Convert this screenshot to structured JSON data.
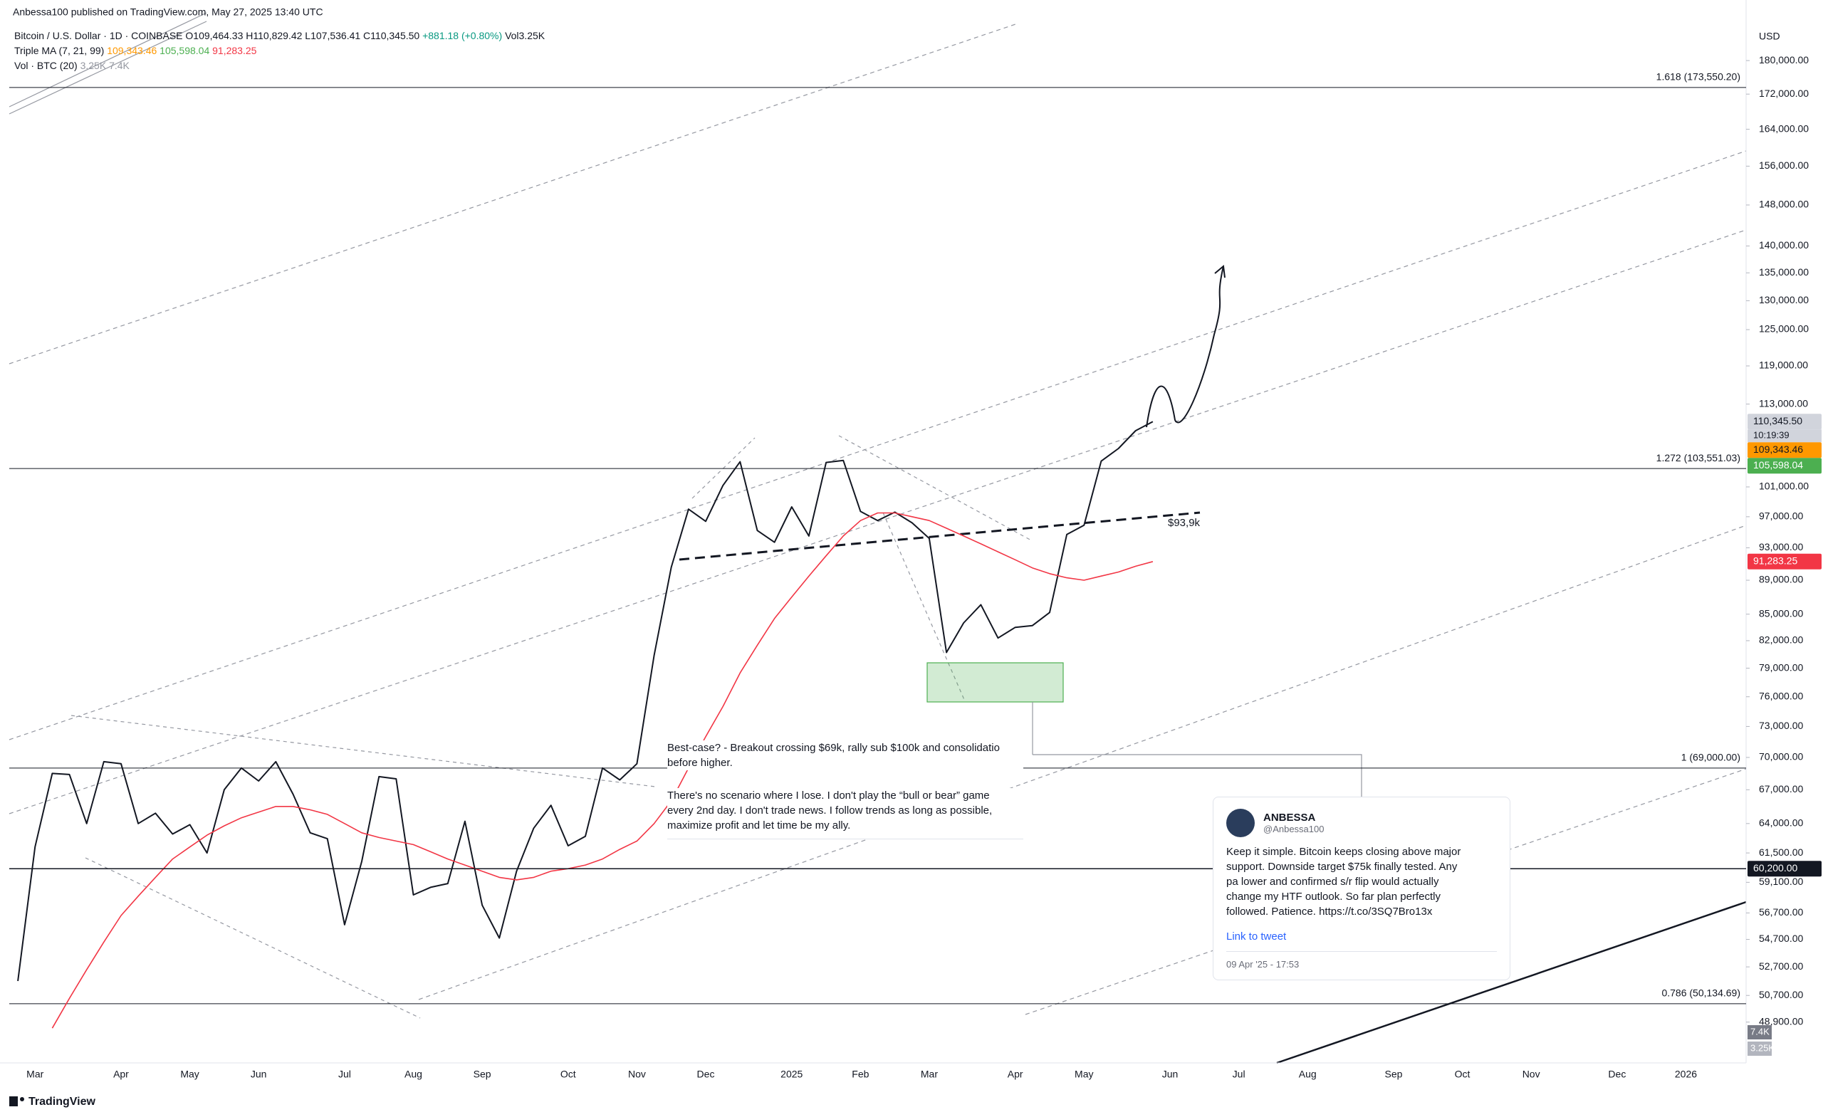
{
  "header": {
    "published": "Anbessa100 published on TradingView.com, May 27, 2025 13:40 UTC"
  },
  "legend": {
    "symbol": "Bitcoin / U.S. Dollar · 1D · COINBASE",
    "open": "O109,464.33",
    "high": "H110,829.42",
    "low": "L107,536.41",
    "close": "C110,345.50",
    "change": "+881.18 (+0.80%)",
    "volume": "Vol3.25K",
    "ma_name": "Triple MA (7, 21, 99)",
    "ma_values": [
      "109,343.46",
      "105,598.04",
      "91,283.25"
    ],
    "vol_name": "Vol · BTC (20)",
    "vol_values": [
      "3.25K",
      "7.4K"
    ]
  },
  "chart_data": {
    "type": "line",
    "currency": "USD",
    "log_scale": true,
    "grid": false,
    "ylim": [
      46270,
      195400
    ],
    "yticks": [
      {
        "value": 180000,
        "label": "180,000.00"
      },
      {
        "value": 172000,
        "label": "172,000.00"
      },
      {
        "value": 164000,
        "label": "164,000.00"
      },
      {
        "value": 156000,
        "label": "156,000.00"
      },
      {
        "value": 148000,
        "label": "148,000.00"
      },
      {
        "value": 140000,
        "label": "140,000.00"
      },
      {
        "value": 135000,
        "label": "135,000.00"
      },
      {
        "value": 130000,
        "label": "130,000.00"
      },
      {
        "value": 125000,
        "label": "125,000.00"
      },
      {
        "value": 119000,
        "label": "119,000.00"
      },
      {
        "value": 113000,
        "label": "113,000.00"
      },
      {
        "value": 101000,
        "label": "101,000.00"
      },
      {
        "value": 97000,
        "label": "97,000.00"
      },
      {
        "value": 93000,
        "label": "93,000.00"
      },
      {
        "value": 89000,
        "label": "89,000.00"
      },
      {
        "value": 85000,
        "label": "85,000.00"
      },
      {
        "value": 82000,
        "label": "82,000.00"
      },
      {
        "value": 79000,
        "label": "79,000.00"
      },
      {
        "value": 76000,
        "label": "76,000.00"
      },
      {
        "value": 73000,
        "label": "73,000.00"
      },
      {
        "value": 70000,
        "label": "70,000.00"
      },
      {
        "value": 67000,
        "label": "67,000.00"
      },
      {
        "value": 64000,
        "label": "64,000.00"
      },
      {
        "value": 61500,
        "label": "61,500.00"
      },
      {
        "value": 59100,
        "label": "59,100.00"
      },
      {
        "value": 56700,
        "label": "56,700.00"
      },
      {
        "value": 54700,
        "label": "54,700.00"
      },
      {
        "value": 52700,
        "label": "52,700.00"
      },
      {
        "value": 50700,
        "label": "50,700.00"
      },
      {
        "value": 48900,
        "label": "48,900.00"
      }
    ],
    "categories": [
      null,
      "Mar",
      null,
      null,
      null,
      null,
      "Apr",
      null,
      null,
      null,
      "May",
      null,
      null,
      null,
      "Jun",
      null,
      null,
      null,
      null,
      "Jul",
      null,
      null,
      null,
      "Aug",
      null,
      null,
      null,
      "Sep",
      null,
      null,
      null,
      null,
      "Oct",
      null,
      null,
      null,
      "Nov",
      null,
      null,
      null,
      "Dec",
      null,
      null,
      null,
      null,
      "2025",
      null,
      null,
      null,
      "Feb",
      null,
      null,
      null,
      "Mar",
      null,
      null,
      null,
      null,
      "Apr",
      null,
      null,
      null,
      "May",
      null,
      null,
      null,
      null,
      "Jun",
      null,
      null,
      null,
      "Jul",
      null,
      null,
      null,
      "Aug",
      null,
      null,
      null,
      null,
      "Sep",
      null,
      null,
      null,
      "Oct",
      null,
      null,
      null,
      "Nov",
      null,
      null,
      null,
      null,
      "Dec",
      null,
      null,
      null,
      "2026",
      null,
      null,
      null
    ],
    "series": [
      {
        "color": "#131722",
        "values": [
          51700,
          62000,
          68500,
          68400,
          64000,
          69600,
          69400,
          64000,
          64900,
          63100,
          63900,
          61500,
          67000,
          69000,
          67800,
          69600,
          66600,
          63200,
          62700,
          55800,
          60800,
          68200,
          68000,
          58100,
          58700,
          59000,
          64200,
          57300,
          54800,
          60000,
          63600,
          65600,
          62100,
          62900,
          69000,
          67900,
          69400,
          80400,
          90600,
          98000,
          96400,
          101200,
          104500,
          95200,
          93700,
          98300,
          94500,
          104400,
          104700,
          97700,
          96500,
          97600,
          96200,
          94200,
          80700,
          84000,
          86100,
          82300,
          83500,
          83700,
          85200,
          94700,
          95900,
          104600,
          106400,
          109000,
          110345.5,
          null,
          null,
          null,
          null,
          null,
          null,
          null,
          null,
          null,
          null,
          null,
          null,
          null,
          null,
          null,
          null,
          null,
          null,
          null,
          null,
          null,
          null,
          null,
          null,
          null,
          null,
          null,
          null,
          null,
          null,
          null,
          null,
          null,
          null
        ]
      },
      {
        "color": "#f23645",
        "values": [
          null,
          null,
          48500,
          50500,
          52500,
          54500,
          56500,
          58000,
          59500,
          61000,
          62000,
          63000,
          63800,
          64500,
          65000,
          65500,
          65500,
          65200,
          64800,
          64000,
          63200,
          62800,
          62500,
          62200,
          61600,
          61000,
          60500,
          60000,
          59500,
          59300,
          59500,
          60000,
          60200,
          60500,
          61000,
          61800,
          62500,
          64000,
          66000,
          69000,
          72000,
          75000,
          78500,
          81500,
          84500,
          87000,
          89500,
          92000,
          94500,
          96500,
          97500,
          97500,
          97000,
          96500,
          95500,
          94500,
          93500,
          92500,
          91500,
          90500,
          89800,
          89300,
          89000,
          89500,
          90000,
          90700,
          91283.25,
          null,
          null,
          null,
          null,
          null,
          null,
          null,
          null,
          null,
          null,
          null,
          null,
          null,
          null,
          null,
          null,
          null,
          null,
          null,
          null,
          null,
          null,
          null,
          null,
          null,
          null,
          null,
          null,
          null,
          null,
          null,
          null,
          null,
          null
        ]
      }
    ],
    "levels": [
      {
        "value": 173550.2,
        "label": "1.618 (173,550.20)"
      },
      {
        "value": 103551.03,
        "label": "1.272 (103,551.03)"
      },
      {
        "value": 69000,
        "label": "1 (69,000.00)"
      },
      {
        "value": 50134.69,
        "label": "0.786 (50,134.69)"
      }
    ],
    "price_tags": [
      {
        "value": 110345.5,
        "label": "110,345.50",
        "color": "#d1d4dc",
        "text_color": "#131722"
      },
      {
        "value": 109343.46,
        "label": "109,343.46",
        "color": "#ff9800",
        "text_color": "#131722"
      },
      {
        "value": 105598.04,
        "label": "105,598.04",
        "color": "#4caf50",
        "text_color": "#ffffff"
      },
      {
        "value": 91283.25,
        "label": "91,283.25",
        "color": "#f23645",
        "text_color": "#ffffff"
      },
      {
        "value": 60200,
        "label": "60,200.00",
        "color": "#131722",
        "text_color": "#ffffff"
      }
    ],
    "countdown": "10:19:39",
    "volume_tags": [
      "7.4K",
      "3.25K"
    ]
  },
  "annotations": {
    "neckline": "$93,9k",
    "best_case": [
      "Best-case? - Breakout crossing $69k, rally sub $100k and consolidatio",
      "before higher."
    ],
    "note": [
      "There's no scenario where I lose. I don't play the “bull or bear” game",
      "every 2nd day. I don't trade news. I follow trends as long as possible,",
      "maximize profit and let time be my ally."
    ]
  },
  "tweet": {
    "name": "ANBESSA",
    "handle": "@Anbessa100",
    "body": [
      "Keep it simple. Bitcoin keeps closing above major",
      "support. Downside target $75k finally tested. Any",
      "pa lower and confirmed s/r flip would actually",
      "change my HTF outlook. So far plan perfectly",
      "followed. Patience. https://t.co/3SQ7Bro13x"
    ],
    "link": "Link to tweet",
    "date": "09 Apr '25 - 17:53"
  },
  "footer": {
    "brand": "TradingView"
  }
}
